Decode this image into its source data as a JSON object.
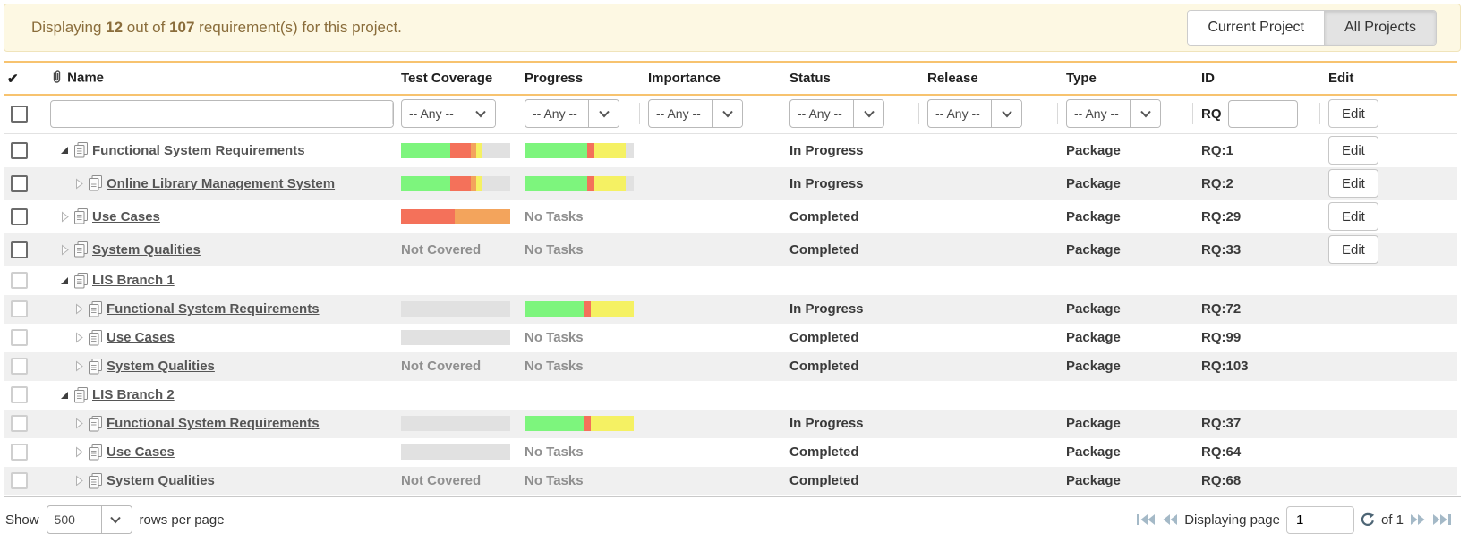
{
  "alert": {
    "prefix": "Displaying ",
    "count": "12",
    "mid": " out of ",
    "total": "107",
    "suffix": " requirement(s) for this project."
  },
  "toggle": {
    "current_label": "Current Project",
    "all_label": "All Projects",
    "active": "All Projects"
  },
  "colors": {
    "green": "#7df57d",
    "red": "#f4715a",
    "orange": "#f3a45c",
    "yellow": "#f5f163",
    "gray": "#e1e1e1",
    "accent_line": "#f7c36f",
    "alert_bg": "#fdf8e3",
    "alert_text": "#8a6d3b"
  },
  "table": {
    "columns": [
      "Name",
      "Test Coverage",
      "Progress",
      "Importance",
      "Status",
      "Release",
      "Type",
      "ID",
      "Edit"
    ],
    "filter": {
      "any_label": "-- Any --",
      "id_prefix": "RQ",
      "edit_label": "Edit",
      "name_value": "",
      "id_value": ""
    },
    "rows": [
      {
        "name": "Functional System Requirements",
        "depth": 0,
        "state": "expanded",
        "coverage": {
          "bar": [
            {
              "c": "green",
              "p": 45
            },
            {
              "c": "red",
              "p": 19
            },
            {
              "c": "orange",
              "p": 5
            },
            {
              "c": "yellow",
              "p": 6
            },
            {
              "c": "gray",
              "p": 25
            }
          ]
        },
        "progress": {
          "bar": [
            {
              "c": "green",
              "p": 57
            },
            {
              "c": "red",
              "p": 7
            },
            {
              "c": "yellow",
              "p": 29
            },
            {
              "c": "gray",
              "p": 7
            }
          ]
        },
        "importance": "",
        "status": "In Progress",
        "release": "",
        "type": "Package",
        "id": "RQ:1",
        "editable": true
      },
      {
        "name": "Online Library Management System",
        "depth": 1,
        "state": "collapsed",
        "coverage": {
          "bar": [
            {
              "c": "green",
              "p": 45
            },
            {
              "c": "red",
              "p": 19
            },
            {
              "c": "orange",
              "p": 5
            },
            {
              "c": "yellow",
              "p": 6
            },
            {
              "c": "gray",
              "p": 25
            }
          ]
        },
        "progress": {
          "bar": [
            {
              "c": "green",
              "p": 57
            },
            {
              "c": "red",
              "p": 7
            },
            {
              "c": "yellow",
              "p": 29
            },
            {
              "c": "gray",
              "p": 7
            }
          ]
        },
        "importance": "",
        "status": "In Progress",
        "release": "",
        "type": "Package",
        "id": "RQ:2",
        "editable": true
      },
      {
        "name": "Use Cases",
        "depth": 0,
        "state": "collapsed",
        "coverage": {
          "bar": [
            {
              "c": "red",
              "p": 49
            },
            {
              "c": "orange",
              "p": 51
            }
          ]
        },
        "progress": {
          "text": "No Tasks"
        },
        "importance": "",
        "status": "Completed",
        "release": "",
        "type": "Package",
        "id": "RQ:29",
        "editable": true
      },
      {
        "name": "System Qualities",
        "depth": 0,
        "state": "collapsed",
        "coverage": {
          "text": "Not Covered"
        },
        "progress": {
          "text": "No Tasks"
        },
        "importance": "",
        "status": "Completed",
        "release": "",
        "type": "Package",
        "id": "RQ:33",
        "editable": true
      },
      {
        "name": "LIS Branch 1",
        "depth": 0,
        "state": "expanded",
        "coverage": {},
        "progress": {},
        "importance": "",
        "status": "",
        "release": "",
        "type": "",
        "id": "",
        "editable": false
      },
      {
        "name": "Functional System Requirements",
        "depth": 1,
        "state": "collapsed",
        "coverage": {
          "bar": [
            {
              "c": "gray",
              "p": 100
            }
          ]
        },
        "progress": {
          "bar": [
            {
              "c": "green",
              "p": 54
            },
            {
              "c": "red",
              "p": 7
            },
            {
              "c": "yellow",
              "p": 39
            }
          ]
        },
        "importance": "",
        "status": "In Progress",
        "release": "",
        "type": "Package",
        "id": "RQ:72",
        "editable": false
      },
      {
        "name": "Use Cases",
        "depth": 1,
        "state": "collapsed",
        "coverage": {
          "bar": [
            {
              "c": "gray",
              "p": 100
            }
          ]
        },
        "progress": {
          "text": "No Tasks"
        },
        "importance": "",
        "status": "Completed",
        "release": "",
        "type": "Package",
        "id": "RQ:99",
        "editable": false
      },
      {
        "name": "System Qualities",
        "depth": 1,
        "state": "collapsed",
        "coverage": {
          "text": "Not Covered"
        },
        "progress": {
          "text": "No Tasks"
        },
        "importance": "",
        "status": "Completed",
        "release": "",
        "type": "Package",
        "id": "RQ:103",
        "editable": false
      },
      {
        "name": "LIS Branch 2",
        "depth": 0,
        "state": "expanded",
        "coverage": {},
        "progress": {},
        "importance": "",
        "status": "",
        "release": "",
        "type": "",
        "id": "",
        "editable": false
      },
      {
        "name": "Functional System Requirements",
        "depth": 1,
        "state": "collapsed",
        "coverage": {
          "bar": [
            {
              "c": "gray",
              "p": 100
            }
          ]
        },
        "progress": {
          "bar": [
            {
              "c": "green",
              "p": 54
            },
            {
              "c": "red",
              "p": 7
            },
            {
              "c": "yellow",
              "p": 39
            }
          ]
        },
        "importance": "",
        "status": "In Progress",
        "release": "",
        "type": "Package",
        "id": "RQ:37",
        "editable": false
      },
      {
        "name": "Use Cases",
        "depth": 1,
        "state": "collapsed",
        "coverage": {
          "bar": [
            {
              "c": "gray",
              "p": 100
            }
          ]
        },
        "progress": {
          "text": "No Tasks"
        },
        "importance": "",
        "status": "Completed",
        "release": "",
        "type": "Package",
        "id": "RQ:64",
        "editable": false
      },
      {
        "name": "System Qualities",
        "depth": 1,
        "state": "collapsed",
        "coverage": {
          "text": "Not Covered"
        },
        "progress": {
          "text": "No Tasks"
        },
        "importance": "",
        "status": "Completed",
        "release": "",
        "type": "Package",
        "id": "RQ:68",
        "editable": false
      }
    ],
    "row_edit_label": "Edit"
  },
  "footer": {
    "show_label": "Show",
    "page_size": "500",
    "rows_per_page_label": "rows per page",
    "displaying_label": "Displaying page",
    "page_value": "1",
    "of_label": "of 1"
  },
  "icons": {
    "select_column": "✔",
    "attachment": "paperclip",
    "expanded_node": "filled-triangle",
    "collapsed_node": "outline-triangle",
    "refresh": "↻"
  }
}
